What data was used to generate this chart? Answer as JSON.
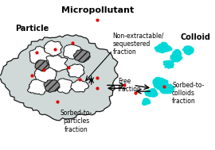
{
  "title": "Micropollutant",
  "bg_color": "#ffffff",
  "particle_label": "Particle",
  "colloid_label": "Colloid",
  "labels": {
    "non_extractable": "Non-extractable/\nsequestered\nfraction",
    "free": "Free\nfraction",
    "sorbed_particles": "Sorbed-to-\nparticles\nfraction",
    "sorbed_colloids": "Sorbed-to-\ncolloids\nfraction"
  },
  "particle_color": "#d0d8d8",
  "particle_edge": "#1a1a1a",
  "colloid_color": "#00d8d8",
  "micropollutant_color": "#dd0000",
  "font_size_title": 8,
  "font_size_label": 5.5,
  "font_size_section": 7
}
